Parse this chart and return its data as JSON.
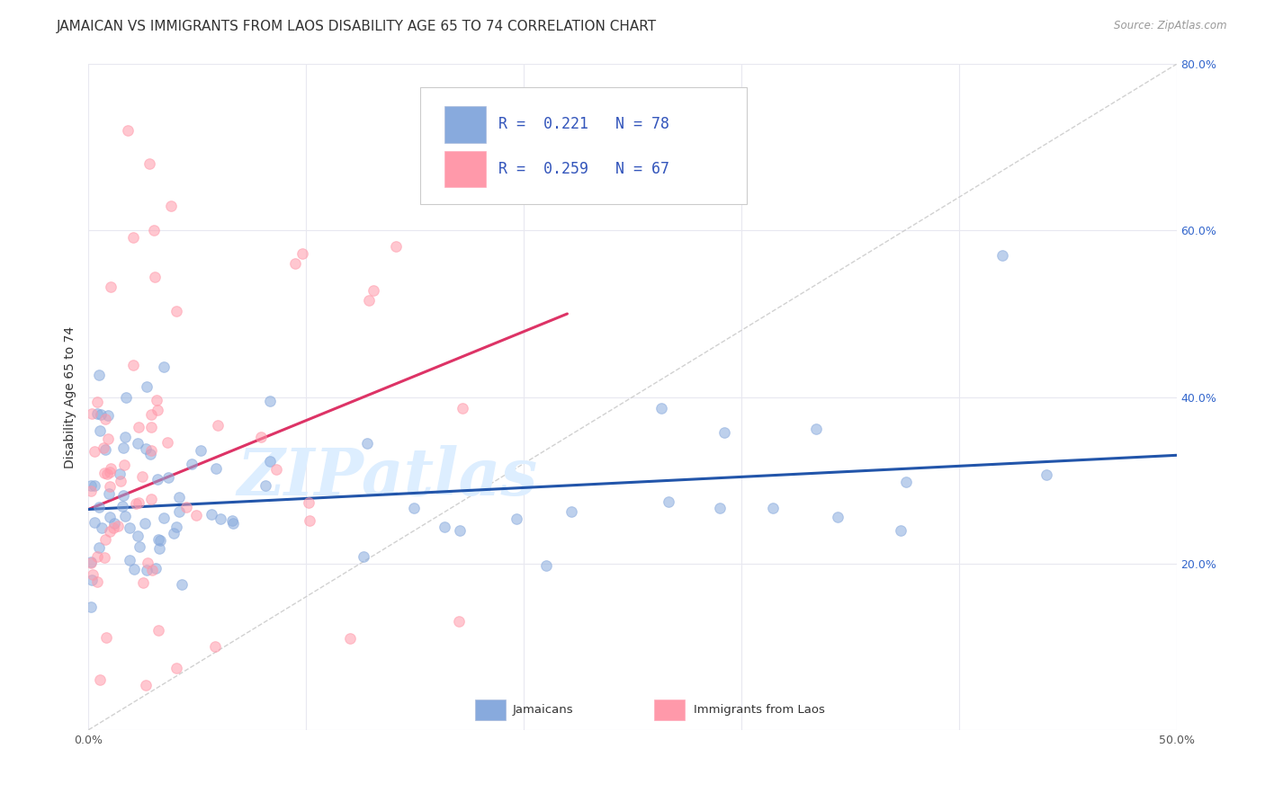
{
  "title": "JAMAICAN VS IMMIGRANTS FROM LAOS DISABILITY AGE 65 TO 74 CORRELATION CHART",
  "source": "Source: ZipAtlas.com",
  "ylabel": "Disability Age 65 to 74",
  "xlim": [
    0.0,
    0.5
  ],
  "ylim": [
    0.0,
    0.8
  ],
  "xtick_vals": [
    0.0,
    0.1,
    0.2,
    0.3,
    0.4,
    0.5
  ],
  "xtick_labels": [
    "0.0%",
    "",
    "",
    "",
    "",
    "50.0%"
  ],
  "ytick_vals": [
    0.0,
    0.2,
    0.4,
    0.6,
    0.8
  ],
  "ytick_labels_right": [
    "",
    "20.0%",
    "40.0%",
    "60.0%",
    "80.0%"
  ],
  "blue_marker_color": "#88AADD",
  "pink_marker_color": "#FF99AA",
  "blue_line_color": "#2255AA",
  "pink_line_color": "#DD3366",
  "dashed_color": "#CCCCCC",
  "legend_R_blue": "0.221",
  "legend_N_blue": "78",
  "legend_R_pink": "0.259",
  "legend_N_pink": "67",
  "watermark_text": "ZIPatlas",
  "watermark_color": "#DDEEFF",
  "background_color": "#FFFFFF",
  "grid_color": "#E8E8F0",
  "title_fontsize": 11,
  "axis_label_fontsize": 10,
  "tick_fontsize": 9,
  "legend_fontsize": 12,
  "watermark_fontsize": 52,
  "source_text": "Source: ZipAtlas.com"
}
